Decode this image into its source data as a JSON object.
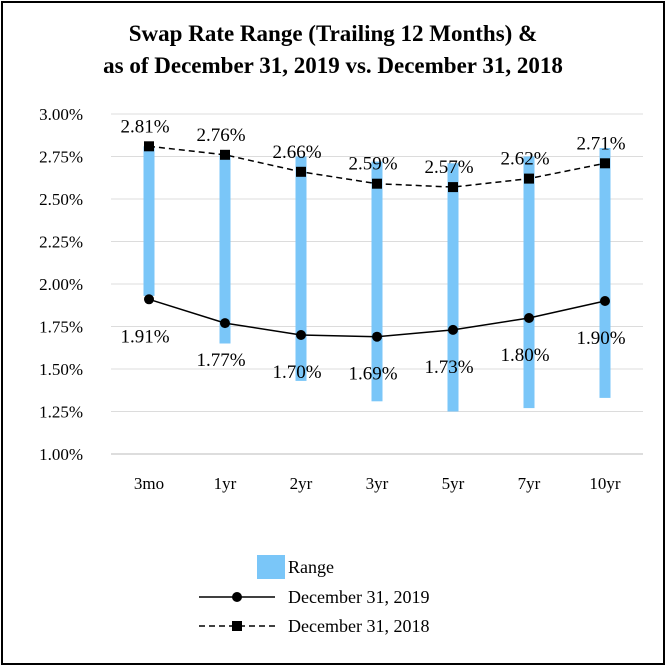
{
  "chart_data": {
    "type": "bar+line",
    "title_lines": [
      "Swap Rate Range (Trailing 12 Months) &",
      "as of December 31, 2019 vs. December 31, 2018"
    ],
    "categories": [
      "3mo",
      "1yr",
      "2yr",
      "3yr",
      "5yr",
      "7yr",
      "10yr"
    ],
    "ylim": [
      1.0,
      3.0
    ],
    "yticks": [
      1.0,
      1.25,
      1.5,
      1.75,
      2.0,
      2.25,
      2.5,
      2.75,
      3.0
    ],
    "ytick_labels": [
      "1.00%",
      "1.25%",
      "1.50%",
      "1.75%",
      "2.00%",
      "2.25%",
      "2.50%",
      "2.75%",
      "3.00%"
    ],
    "grid": true,
    "range": {
      "name": "Range",
      "color": "#7ac6f8",
      "low": [
        1.93,
        1.65,
        1.43,
        1.31,
        1.25,
        1.27,
        1.33
      ],
      "high": [
        2.81,
        2.76,
        2.75,
        2.72,
        2.71,
        2.75,
        2.8
      ]
    },
    "series": [
      {
        "name": "December 31, 2019",
        "style": "solid",
        "marker": "circle",
        "values": [
          1.91,
          1.77,
          1.7,
          1.69,
          1.73,
          1.8,
          1.9
        ],
        "labels": [
          "1.91%",
          "1.77%",
          "1.70%",
          "1.69%",
          "1.73%",
          "1.80%",
          "1.90%"
        ]
      },
      {
        "name": "December 31, 2018",
        "style": "dashed",
        "marker": "square",
        "values": [
          2.81,
          2.76,
          2.66,
          2.59,
          2.57,
          2.62,
          2.71
        ],
        "labels": [
          "2.81%",
          "2.76%",
          "2.66%",
          "2.59%",
          "2.57%",
          "2.62%",
          "2.71%"
        ]
      }
    ],
    "legend": {
      "placement": "bottom-center",
      "entries": [
        "Range",
        "December 31, 2019",
        "December 31, 2018"
      ]
    }
  }
}
